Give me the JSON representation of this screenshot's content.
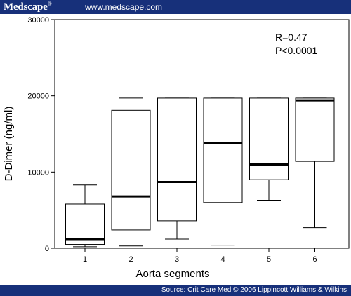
{
  "header": {
    "logo_text": "Medscape",
    "logo_mark": "®",
    "url": "www.medscape.com"
  },
  "footer": {
    "source": "Source: Crit Care Med © 2006 Lippincott Williams & Wilkins"
  },
  "colors": {
    "bar": "#17307a",
    "box_stroke": "#000000",
    "median": "#000000"
  },
  "chart_data": {
    "type": "box",
    "title": "",
    "xlabel": "Aorta segments",
    "ylabel": "D-Dimer (ng/ml)",
    "ylim": [
      0,
      30000
    ],
    "yticks": [
      0,
      10000,
      20000,
      30000
    ],
    "ytick_labels": [
      "0",
      "10000",
      "20000",
      "30000"
    ],
    "grid": false,
    "annotations": [
      "R=0.47",
      "P<0.0001"
    ],
    "categories": [
      "1",
      "2",
      "3",
      "4",
      "5",
      "6"
    ],
    "boxes": [
      {
        "category": "1",
        "whisker_low": 200,
        "q1": 500,
        "median": 1200,
        "q3": 5800,
        "whisker_high": 8300
      },
      {
        "category": "2",
        "whisker_low": 300,
        "q1": 2400,
        "median": 6800,
        "q3": 18100,
        "whisker_high": 19700
      },
      {
        "category": "3",
        "whisker_low": 1200,
        "q1": 3600,
        "median": 8700,
        "q3": 19700,
        "whisker_high": 19700
      },
      {
        "category": "4",
        "whisker_low": 400,
        "q1": 6000,
        "median": 13800,
        "q3": 19700,
        "whisker_high": 19700
      },
      {
        "category": "5",
        "whisker_low": 6300,
        "q1": 9000,
        "median": 11000,
        "q3": 19700,
        "whisker_high": 19700
      },
      {
        "category": "6",
        "whisker_low": 2700,
        "q1": 11400,
        "median": 19400,
        "q3": 19700,
        "whisker_high": 19700
      }
    ]
  }
}
